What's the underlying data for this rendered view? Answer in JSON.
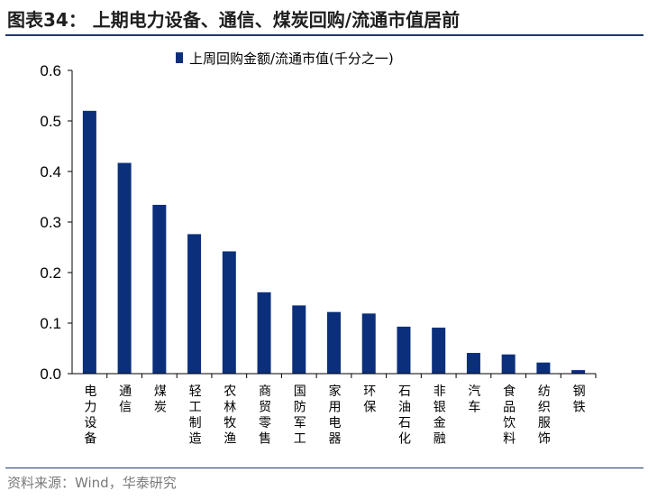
{
  "figure": {
    "title": "图表34：  上期电力设备、通信、煤炭回购/流通市值居前",
    "source": "资料来源：Wind，华泰研究"
  },
  "colors": {
    "bar": "#0b2f7a",
    "rule": "#1f3a6e"
  },
  "chart_data": {
    "type": "bar",
    "categories": [
      "电力设备",
      "通信",
      "煤炭",
      "轻工制造",
      "农林牧渔",
      "商贸零售",
      "国防军工",
      "家用电器",
      "环保",
      "石油石化",
      "非银金融",
      "汽车",
      "食品饮料",
      "纺织服饰",
      "钢铁"
    ],
    "series": [
      {
        "name": "上周回购金额/流通市值(千分之一)",
        "values": [
          0.52,
          0.417,
          0.334,
          0.276,
          0.242,
          0.161,
          0.135,
          0.122,
          0.119,
          0.093,
          0.091,
          0.041,
          0.038,
          0.022,
          0.007
        ]
      }
    ],
    "ylim": [
      0,
      0.6
    ],
    "yticks": [
      "0.0",
      "0.1",
      "0.2",
      "0.3",
      "0.4",
      "0.5",
      "0.6"
    ],
    "grid": false,
    "legend_position": "top-center"
  }
}
